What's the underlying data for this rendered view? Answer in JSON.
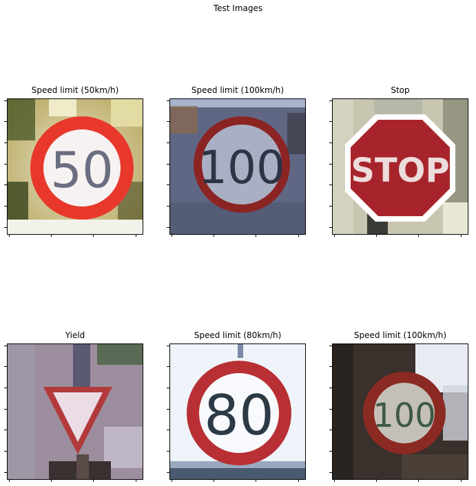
{
  "figure": {
    "title": "Test Images"
  },
  "panels": [
    {
      "title": "Speed limit (50km/h)",
      "icon": "speed-limit-50-sign",
      "sign_text": "50"
    },
    {
      "title": "Speed limit (100km/h)",
      "icon": "speed-limit-100-sign",
      "sign_text": "100"
    },
    {
      "title": "Stop",
      "icon": "stop-sign",
      "sign_text": "STOP"
    },
    {
      "title": "Yield",
      "icon": "yield-sign",
      "sign_text": ""
    },
    {
      "title": "Speed limit (80km/h)",
      "icon": "speed-limit-80-sign",
      "sign_text": "80"
    },
    {
      "title": "Speed limit (100km/h)",
      "icon": "speed-limit-100-sign",
      "sign_text": "100"
    }
  ]
}
